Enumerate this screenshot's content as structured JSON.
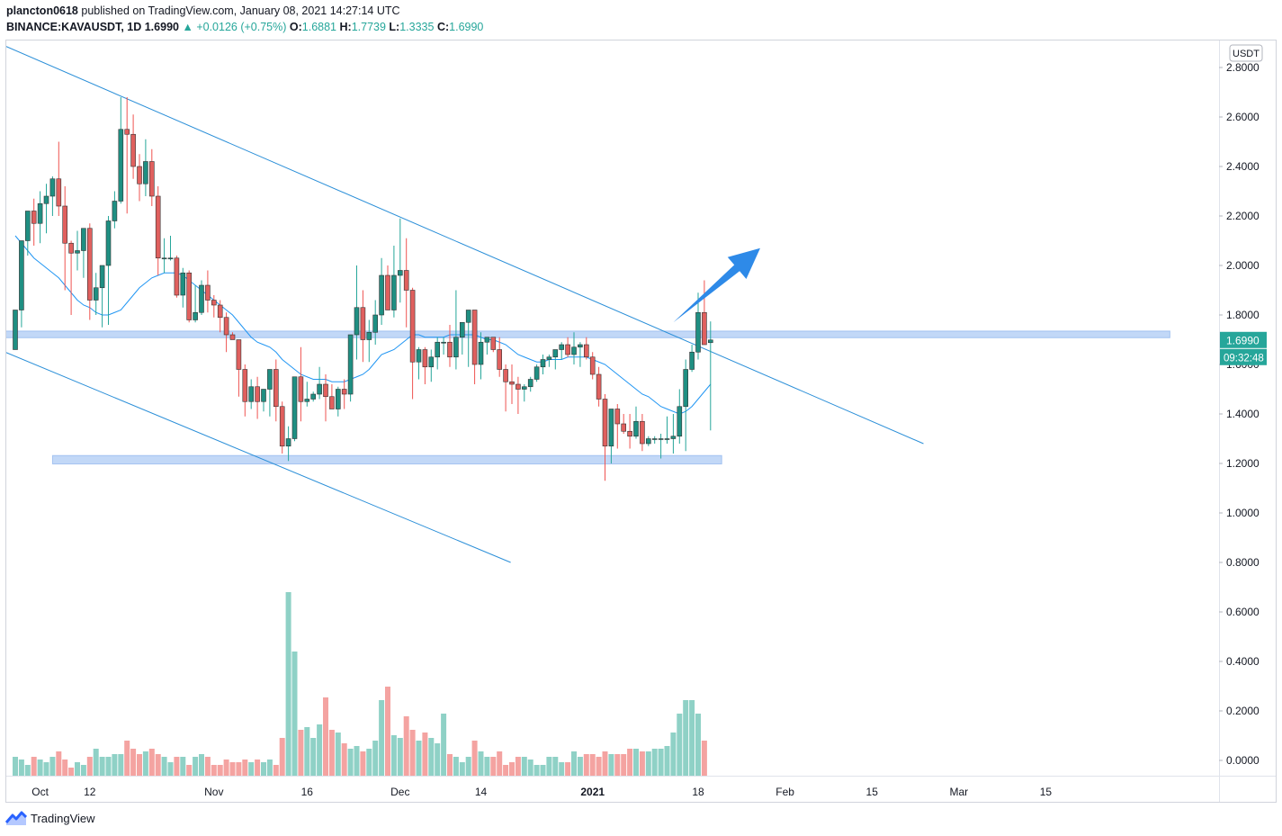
{
  "header": {
    "publisher": "plancton0618",
    "published_text": "published on TradingView.com, January 08, 2021 14:27:14 UTC",
    "symbol": "BINANCE:KAVAUSDT, 1D",
    "last": "1.6990",
    "change": "+0.0126 (+0.75%)",
    "o_label": "O:",
    "o_value": "1.6881",
    "h_label": "H:",
    "h_value": "1.7739",
    "l_label": "L:",
    "l_value": "1.3335",
    "c_label": "C:",
    "c_value": "1.6990"
  },
  "footer": {
    "brand": "TradingView",
    "logo_icon": "tradingview-logo-icon"
  },
  "chart_data": {
    "type": "candlestick",
    "currency": "USDT",
    "price_axis_ticks": [
      "2.8000",
      "2.6000",
      "2.4000",
      "2.2000",
      "2.0000",
      "1.8000",
      "1.6000",
      "1.4000",
      "1.2000",
      "1.0000",
      "0.8000",
      "0.6000",
      "0.4000",
      "0.2000",
      "0.0000"
    ],
    "ylim": [
      -0.02,
      2.86
    ],
    "x_labels": [
      {
        "label": "Oct",
        "day": 4
      },
      {
        "label": "12",
        "day": 12
      },
      {
        "label": "Nov",
        "day": 32
      },
      {
        "label": "16",
        "day": 47
      },
      {
        "label": "Dec",
        "day": 62
      },
      {
        "label": "14",
        "day": 75
      },
      {
        "label": "2021",
        "day": 93
      },
      {
        "label": "18",
        "day": 110
      },
      {
        "label": "Feb",
        "day": 124
      },
      {
        "label": "15",
        "day": 138
      },
      {
        "label": "Mar",
        "day": 152
      },
      {
        "label": "15",
        "day": 166
      }
    ],
    "current_price_label": "1.6990",
    "countdown_label": "09:32:48",
    "up_color": "#26a69a",
    "down_color": "#ef5350",
    "ma_color": "#2196f3",
    "candles": [
      [
        1.66,
        1.74,
        1.7,
        1.82
      ],
      [
        1.82,
        1.75,
        1.92,
        2.1
      ],
      [
        2.1,
        2.04,
        2.2,
        2.22
      ],
      [
        2.22,
        2.08,
        2.27,
        2.17
      ],
      [
        2.17,
        2.09,
        2.3,
        2.25
      ],
      [
        2.25,
        2.13,
        2.33,
        2.28
      ],
      [
        2.28,
        2.2,
        2.36,
        2.35
      ],
      [
        2.35,
        2.2,
        2.5,
        2.24
      ],
      [
        2.24,
        1.9,
        2.32,
        2.09
      ],
      [
        2.09,
        1.8,
        2.1,
        2.05
      ],
      [
        2.05,
        1.98,
        2.14,
        2.06
      ],
      [
        2.06,
        1.95,
        2.09,
        2.15
      ],
      [
        2.15,
        1.78,
        2.17,
        1.86
      ],
      [
        1.86,
        1.8,
        1.97,
        1.91
      ],
      [
        1.91,
        1.75,
        2.0,
        2.0
      ],
      [
        2.0,
        1.76,
        2.2,
        2.18
      ],
      [
        2.18,
        2.15,
        2.3,
        2.26
      ],
      [
        2.26,
        2.25,
        2.68,
        2.55
      ],
      [
        2.55,
        2.21,
        2.68,
        2.53
      ],
      [
        2.53,
        2.35,
        2.61,
        2.4
      ],
      [
        2.4,
        2.26,
        2.45,
        2.33
      ],
      [
        2.33,
        2.28,
        2.51,
        2.42
      ],
      [
        2.42,
        2.24,
        2.47,
        2.28
      ],
      [
        2.28,
        1.96,
        2.32,
        2.03
      ],
      [
        2.03,
        1.97,
        2.11,
        2.03
      ],
      [
        2.03,
        2.02,
        2.12,
        2.03
      ],
      [
        2.03,
        1.87,
        2.04,
        1.88
      ],
      [
        1.88,
        1.83,
        1.99,
        1.97
      ],
      [
        1.97,
        1.77,
        1.98,
        1.78
      ],
      [
        1.78,
        1.77,
        1.92,
        1.81
      ],
      [
        1.81,
        1.8,
        1.94,
        1.92
      ],
      [
        1.92,
        1.81,
        1.98,
        1.86
      ],
      [
        1.86,
        1.79,
        1.88,
        1.84
      ],
      [
        1.84,
        1.73,
        1.86,
        1.79
      ],
      [
        1.79,
        1.65,
        1.81,
        1.72
      ],
      [
        1.72,
        1.7,
        1.73,
        1.7
      ],
      [
        1.7,
        1.47,
        1.7,
        1.58
      ],
      [
        1.58,
        1.39,
        1.6,
        1.45
      ],
      [
        1.45,
        1.42,
        1.54,
        1.51
      ],
      [
        1.51,
        1.38,
        1.55,
        1.45
      ],
      [
        1.45,
        1.41,
        1.48,
        1.5
      ],
      [
        1.5,
        1.39,
        1.53,
        1.58
      ],
      [
        1.58,
        1.37,
        1.62,
        1.43
      ],
      [
        1.43,
        1.24,
        1.45,
        1.27
      ],
      [
        1.27,
        1.21,
        1.35,
        1.3
      ],
      [
        1.3,
        1.29,
        1.54,
        1.55
      ],
      [
        1.55,
        1.37,
        1.67,
        1.45
      ],
      [
        1.45,
        1.43,
        1.53,
        1.46
      ],
      [
        1.46,
        1.45,
        1.49,
        1.48
      ],
      [
        1.48,
        1.46,
        1.59,
        1.52
      ],
      [
        1.52,
        1.37,
        1.56,
        1.47
      ],
      [
        1.47,
        1.44,
        1.52,
        1.42
      ],
      [
        1.42,
        1.39,
        1.51,
        1.5
      ],
      [
        1.5,
        1.42,
        1.54,
        1.48
      ],
      [
        1.48,
        1.45,
        1.59,
        1.72
      ],
      [
        1.72,
        1.62,
        2.0,
        1.83
      ],
      [
        1.83,
        1.61,
        1.9,
        1.7
      ],
      [
        1.7,
        1.61,
        1.78,
        1.73
      ],
      [
        1.73,
        1.68,
        1.86,
        1.8
      ],
      [
        1.8,
        1.76,
        2.03,
        1.96
      ],
      [
        1.96,
        1.87,
        2.0,
        1.82
      ],
      [
        1.82,
        1.79,
        2.08,
        1.96
      ],
      [
        1.96,
        1.85,
        2.19,
        1.98
      ],
      [
        1.98,
        1.75,
        2.11,
        1.9
      ],
      [
        1.9,
        1.46,
        1.91,
        1.61
      ],
      [
        1.61,
        1.54,
        1.67,
        1.66
      ],
      [
        1.66,
        1.52,
        1.67,
        1.59
      ],
      [
        1.59,
        1.53,
        1.66,
        1.63
      ],
      [
        1.63,
        1.58,
        1.71,
        1.69
      ],
      [
        1.69,
        1.64,
        1.71,
        1.69
      ],
      [
        1.69,
        1.59,
        1.76,
        1.63
      ],
      [
        1.63,
        1.58,
        1.9,
        1.71
      ],
      [
        1.71,
        1.64,
        1.77,
        1.77
      ],
      [
        1.77,
        1.59,
        1.82,
        1.82
      ],
      [
        1.82,
        1.52,
        1.82,
        1.6
      ],
      [
        1.6,
        1.54,
        1.73,
        1.69
      ],
      [
        1.69,
        1.64,
        1.71,
        1.71
      ],
      [
        1.71,
        1.65,
        1.71,
        1.66
      ],
      [
        1.66,
        1.55,
        1.71,
        1.58
      ],
      [
        1.58,
        1.41,
        1.6,
        1.53
      ],
      [
        1.53,
        1.44,
        1.6,
        1.52
      ],
      [
        1.52,
        1.4,
        1.55,
        1.5
      ],
      [
        1.5,
        1.45,
        1.52,
        1.51
      ],
      [
        1.51,
        1.49,
        1.55,
        1.54
      ],
      [
        1.54,
        1.53,
        1.6,
        1.59
      ],
      [
        1.59,
        1.56,
        1.64,
        1.62
      ],
      [
        1.62,
        1.59,
        1.64,
        1.63
      ],
      [
        1.63,
        1.58,
        1.65,
        1.66
      ],
      [
        1.66,
        1.62,
        1.69,
        1.68
      ],
      [
        1.68,
        1.63,
        1.71,
        1.64
      ],
      [
        1.64,
        1.6,
        1.73,
        1.67
      ],
      [
        1.67,
        1.59,
        1.69,
        1.68
      ],
      [
        1.68,
        1.62,
        1.71,
        1.63
      ],
      [
        1.63,
        1.54,
        1.65,
        1.56
      ],
      [
        1.56,
        1.43,
        1.59,
        1.46
      ],
      [
        1.46,
        1.13,
        1.48,
        1.27
      ],
      [
        1.27,
        1.2,
        1.4,
        1.42
      ],
      [
        1.42,
        1.26,
        1.44,
        1.36
      ],
      [
        1.36,
        1.32,
        1.4,
        1.33
      ],
      [
        1.33,
        1.26,
        1.4,
        1.31
      ],
      [
        1.31,
        1.3,
        1.43,
        1.37
      ],
      [
        1.37,
        1.25,
        1.4,
        1.28
      ],
      [
        1.28,
        1.27,
        1.31,
        1.3
      ],
      [
        1.3,
        1.28,
        1.31,
        1.3
      ],
      [
        1.3,
        1.22,
        1.32,
        1.3
      ],
      [
        1.3,
        1.28,
        1.39,
        1.3
      ],
      [
        1.3,
        1.24,
        1.4,
        1.31
      ],
      [
        1.31,
        1.28,
        1.5,
        1.43
      ],
      [
        1.43,
        1.25,
        1.62,
        1.58
      ],
      [
        1.58,
        1.57,
        1.68,
        1.65
      ],
      [
        1.65,
        1.62,
        1.89,
        1.81
      ],
      [
        1.81,
        1.69,
        1.94,
        1.68
      ],
      [
        1.6881,
        1.3335,
        1.7739,
        1.699
      ]
    ],
    "volumes": [
      0.07,
      0.06,
      0.04,
      0.07,
      0.06,
      0.05,
      0.07,
      0.09,
      0.06,
      0.03,
      0.05,
      0.04,
      0.07,
      0.1,
      0.07,
      0.07,
      0.08,
      0.08,
      0.13,
      0.1,
      0.08,
      0.09,
      0.1,
      0.08,
      0.07,
      0.05,
      0.07,
      0.07,
      0.04,
      0.07,
      0.08,
      0.07,
      0.04,
      0.04,
      0.06,
      0.05,
      0.05,
      0.06,
      0.05,
      0.06,
      0.05,
      0.06,
      0.04,
      0.14,
      0.68,
      0.46,
      0.17,
      0.18,
      0.14,
      0.19,
      0.29,
      0.17,
      0.16,
      0.12,
      0.1,
      0.11,
      0.09,
      0.1,
      0.13,
      0.28,
      0.33,
      0.15,
      0.14,
      0.22,
      0.17,
      0.13,
      0.16,
      0.14,
      0.12,
      0.23,
      0.08,
      0.07,
      0.05,
      0.07,
      0.13,
      0.09,
      0.07,
      0.07,
      0.09,
      0.04,
      0.05,
      0.07,
      0.07,
      0.06,
      0.04,
      0.04,
      0.07,
      0.07,
      0.05,
      0.05,
      0.09,
      0.07,
      0.08,
      0.08,
      0.07,
      0.09,
      0.08,
      0.08,
      0.08,
      0.1,
      0.1,
      0.09,
      0.09,
      0.1,
      0.1,
      0.11,
      0.16,
      0.23,
      0.28,
      0.28,
      0.23,
      0.13
    ],
    "ma20": [
      2.12,
      2.09,
      2.06,
      2.03,
      2.01,
      1.99,
      1.97,
      1.95,
      1.92,
      1.89,
      1.86,
      1.84,
      1.83,
      1.81,
      1.8,
      1.8,
      1.81,
      1.82,
      1.85,
      1.88,
      1.91,
      1.93,
      1.95,
      1.96,
      1.97,
      1.97,
      1.97,
      1.96,
      1.94,
      1.92,
      1.9,
      1.88,
      1.86,
      1.84,
      1.82,
      1.8,
      1.77,
      1.74,
      1.71,
      1.69,
      1.68,
      1.67,
      1.65,
      1.62,
      1.6,
      1.58,
      1.56,
      1.55,
      1.54,
      1.54,
      1.54,
      1.53,
      1.53,
      1.53,
      1.54,
      1.55,
      1.56,
      1.58,
      1.61,
      1.64,
      1.65,
      1.66,
      1.68,
      1.7,
      1.72,
      1.72,
      1.71,
      1.71,
      1.71,
      1.71,
      1.72,
      1.72,
      1.72,
      1.72,
      1.72,
      1.71,
      1.7,
      1.7,
      1.69,
      1.68,
      1.66,
      1.64,
      1.63,
      1.62,
      1.61,
      1.61,
      1.62,
      1.62,
      1.62,
      1.63,
      1.63,
      1.63,
      1.63,
      1.62,
      1.61,
      1.6,
      1.58,
      1.56,
      1.54,
      1.52,
      1.5,
      1.48,
      1.47,
      1.45,
      1.43,
      1.42,
      1.41,
      1.4,
      1.41,
      1.43,
      1.46,
      1.49,
      1.52
    ],
    "trendlines": [
      {
        "name": "upper-channel-line",
        "from": [
          -9.3,
          2.97
        ],
        "to": [
          -9.3,
          2.97
        ],
        "x1_day": -9.3,
        "y1": 2.97,
        "x2_day": 146.3,
        "y2": 1.28
      },
      {
        "name": "lower-channel-line",
        "x1_day": -9.3,
        "y1": 1.73,
        "x2_day": 79.8,
        "y2": 0.8
      }
    ],
    "zones": [
      {
        "name": "resistance-zone",
        "x1_day": -9.3,
        "x2_day": 186,
        "y1": 1.708,
        "y2": 1.735
      },
      {
        "name": "support-zone",
        "x1_day": 6.0,
        "x2_day": 113.8,
        "y1": 1.198,
        "y2": 1.232
      }
    ],
    "arrow": {
      "x1_day": 106,
      "y1": 1.77,
      "x2_day": 120,
      "y2": 2.07
    }
  }
}
